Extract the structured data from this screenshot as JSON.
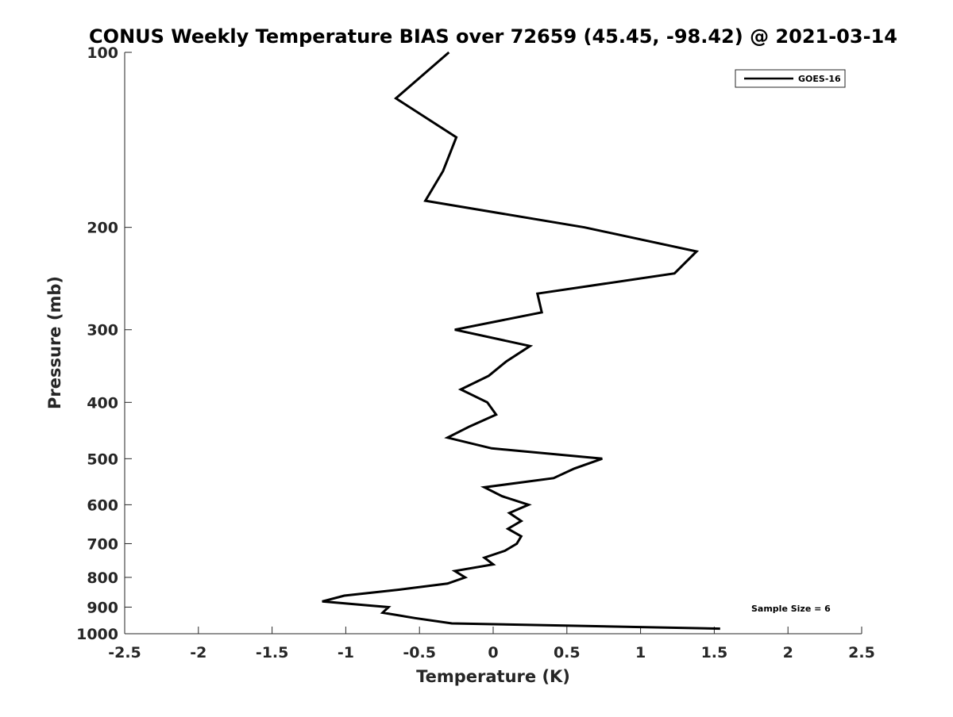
{
  "chart_data": {
    "type": "line",
    "title": "CONUS Weekly Temperature BIAS over 72659 (45.45, -98.42) @ 2021-03-14",
    "xlabel": "Temperature (K)",
    "ylabel": "Pressure (mb)",
    "xlim": [
      -2.5,
      2.5
    ],
    "ylim": [
      100,
      1000
    ],
    "yscale": "log",
    "y_reversed": true,
    "grid": false,
    "xticks": [
      -2.5,
      -2,
      -1.5,
      -1,
      -0.5,
      0,
      0.5,
      1,
      1.5,
      2,
      2.5
    ],
    "xtick_labels": [
      "-2.5",
      "-2",
      "-1.5",
      "-1",
      "-0.5",
      "0",
      "0.5",
      "1",
      "1.5",
      "2",
      "2.5"
    ],
    "yticks": [
      100,
      200,
      300,
      400,
      500,
      600,
      700,
      800,
      900,
      1000
    ],
    "ytick_labels": [
      "100",
      "200",
      "300",
      "400",
      "500",
      "600",
      "700",
      "800",
      "900",
      "1000"
    ],
    "legend": {
      "placement": "top-right",
      "entries": [
        "GOES-16"
      ]
    },
    "annotation": "Sample Size = 6",
    "series": [
      {
        "name": "GOES-16",
        "color": "#000000",
        "pressure": [
          100,
          120,
          140,
          160,
          180,
          200,
          220,
          240,
          260,
          280,
          300,
          320,
          340,
          360,
          380,
          400,
          420,
          440,
          460,
          480,
          500,
          520,
          540,
          560,
          580,
          600,
          620,
          640,
          660,
          680,
          700,
          720,
          740,
          760,
          780,
          800,
          820,
          840,
          860,
          880,
          900,
          920,
          940,
          960,
          980
        ],
        "values": [
          -0.3,
          -0.66,
          -0.25,
          -0.34,
          -0.46,
          0.62,
          1.38,
          1.23,
          0.3,
          0.33,
          -0.26,
          0.25,
          0.09,
          -0.03,
          -0.22,
          -0.04,
          0.02,
          -0.16,
          -0.31,
          -0.01,
          0.74,
          0.55,
          0.41,
          -0.06,
          0.06,
          0.24,
          0.11,
          0.19,
          0.1,
          0.19,
          0.16,
          0.08,
          -0.06,
          0.0,
          -0.26,
          -0.19,
          -0.31,
          -0.64,
          -1.01,
          -1.16,
          -0.71,
          -0.75,
          -0.53,
          -0.28,
          1.54
        ]
      }
    ]
  }
}
